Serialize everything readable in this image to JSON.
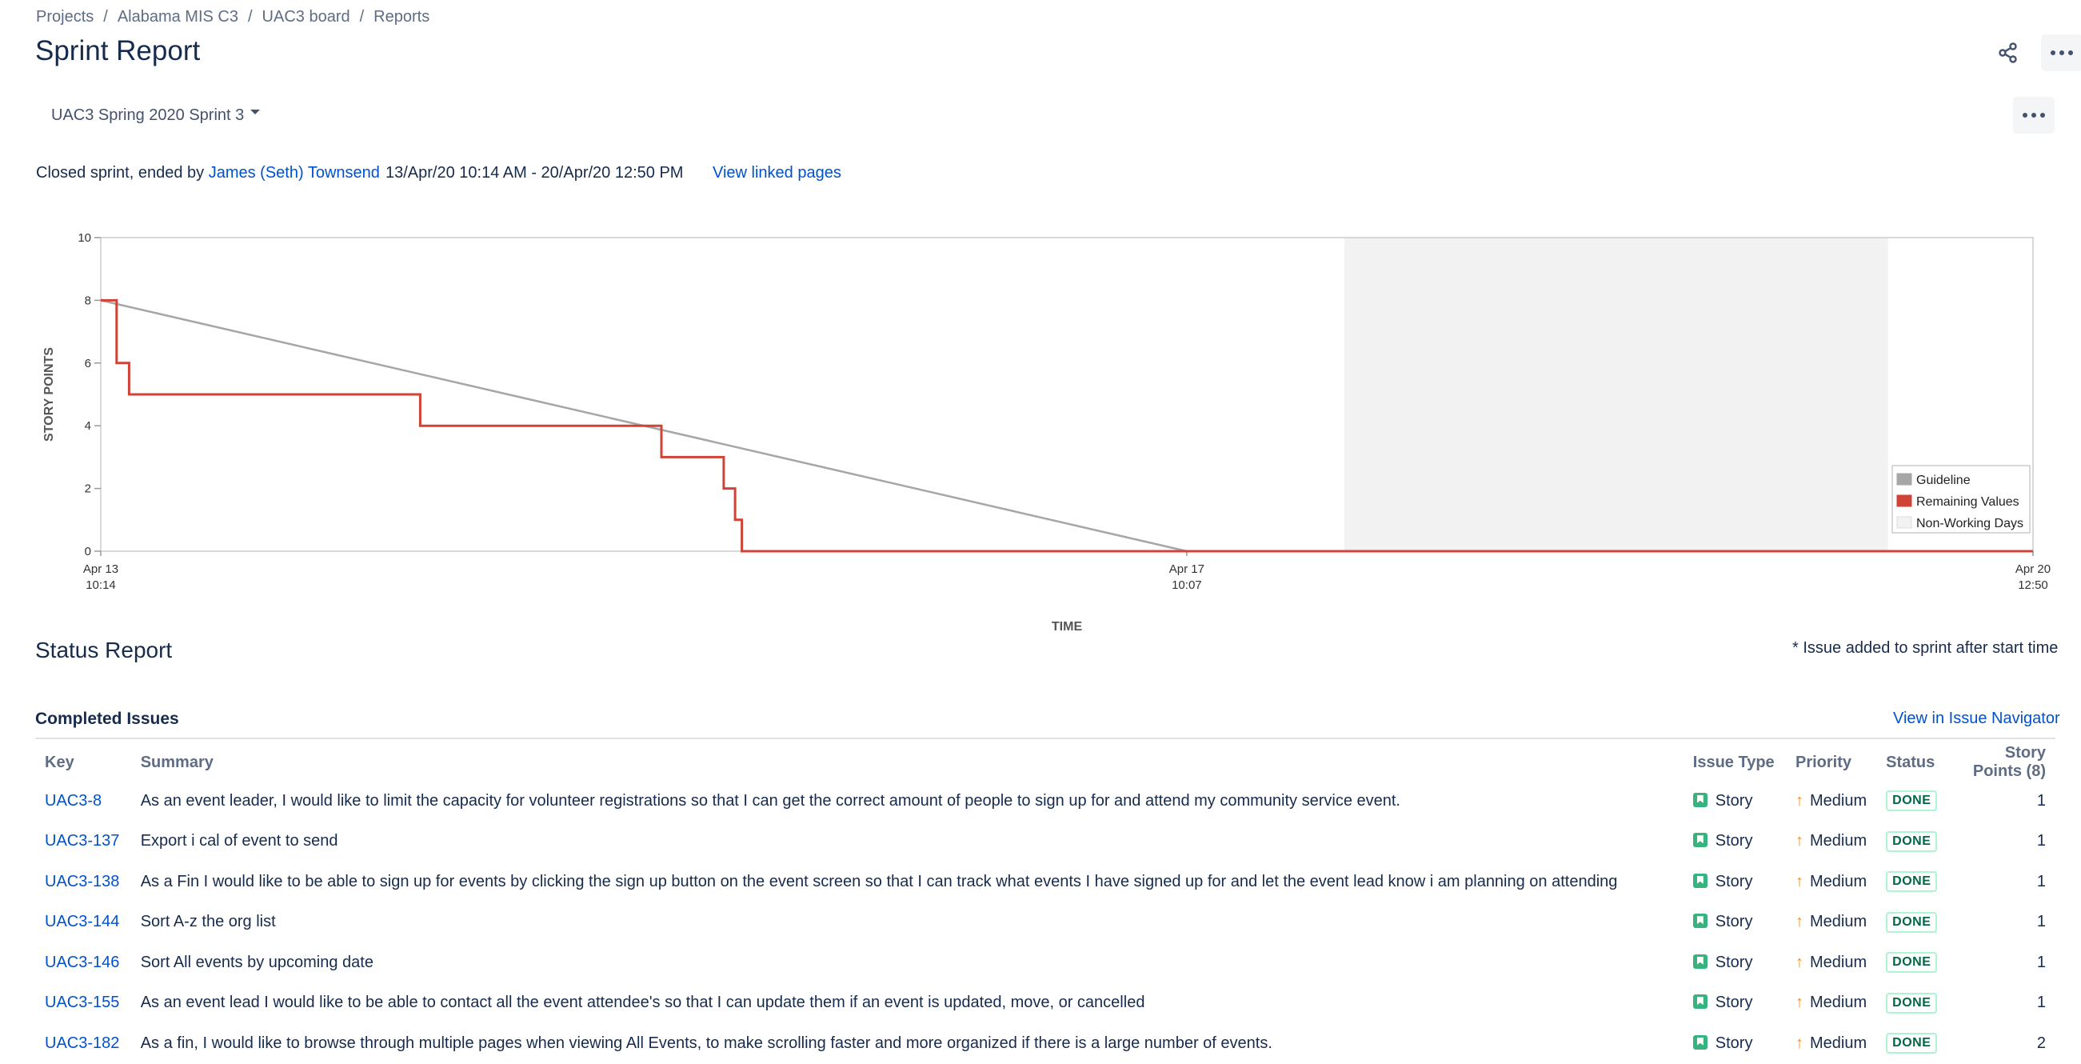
{
  "breadcrumbs": [
    "Projects",
    "Alabama MIS C3",
    "UAC3 board",
    "Reports"
  ],
  "page_title": "Sprint Report",
  "sprint_selector": {
    "value": "UAC3 Spring 2020 Sprint 3"
  },
  "sprint_info": {
    "status_prefix": "Closed sprint, ended by",
    "ended_by": "James (Seth) Townsend",
    "dates": "13/Apr/20 10:14 AM - 20/Apr/20 12:50 PM",
    "linked_pages_link": "View linked pages"
  },
  "chart_data": {
    "type": "line",
    "xlabel": "TIME",
    "ylabel": "STORY POINTS",
    "ylim": [
      0,
      10
    ],
    "y_ticks": [
      "0",
      "2",
      "4",
      "6",
      "8",
      "10"
    ],
    "x_ticks": [
      {
        "date": "Apr 13",
        "time": "10:14",
        "hours": 0
      },
      {
        "date": "Apr 17",
        "time": "10:07",
        "hours": 95.883
      },
      {
        "date": "Apr 20",
        "time": "12:50",
        "hours": 170.6
      }
    ],
    "legend": [
      "Guideline",
      "Remaining Values",
      "Non-Working Days"
    ],
    "legend_position": "top-right",
    "colors": {
      "guideline": "#a6a6a6",
      "remaining": "#d04437",
      "nonworking": "#f2f2f2"
    },
    "non_working_hours": [
      109.8,
      157.8
    ],
    "series": [
      {
        "name": "Guideline",
        "x": [
          0,
          95.883
        ],
        "y": [
          8,
          0
        ]
      },
      {
        "name": "Remaining Values",
        "x": [
          0,
          1.4,
          1.4,
          2.5,
          2.5,
          28.2,
          28.2,
          49.5,
          49.5,
          55.0,
          55.0,
          56.0,
          56.0,
          56.6,
          56.6,
          170.6
        ],
        "y": [
          8,
          8,
          6,
          6,
          5,
          5,
          4,
          4,
          3,
          3,
          2,
          2,
          1,
          1,
          0,
          0
        ]
      }
    ]
  },
  "status_report": {
    "title": "Status Report",
    "note": "* Issue added to sprint after start time"
  },
  "completed": {
    "title": "Completed Issues",
    "navigator_link": "View in Issue Navigator",
    "columns": [
      "Key",
      "Summary",
      "Issue Type",
      "Priority",
      "Status",
      "Story Points (8)"
    ],
    "rows": [
      {
        "key": "UAC3-8",
        "summary": "As an event leader, I would like to limit the capacity for volunteer registrations so that I can get the correct amount of people to sign up for and attend my community service event.",
        "type": "Story",
        "priority": "Medium",
        "status": "DONE",
        "points": "1"
      },
      {
        "key": "UAC3-137",
        "summary": "Export i cal of event to send",
        "type": "Story",
        "priority": "Medium",
        "status": "DONE",
        "points": "1"
      },
      {
        "key": "UAC3-138",
        "summary": "As a Fin I would like to be able to sign up for events by clicking the sign up button on the event screen so that I can track what events I have signed up for and let the event lead know i am planning on attending",
        "type": "Story",
        "priority": "Medium",
        "status": "DONE",
        "points": "1"
      },
      {
        "key": "UAC3-144",
        "summary": "Sort A-z the org list",
        "type": "Story",
        "priority": "Medium",
        "status": "DONE",
        "points": "1"
      },
      {
        "key": "UAC3-146",
        "summary": "Sort All events by upcoming date",
        "type": "Story",
        "priority": "Medium",
        "status": "DONE",
        "points": "1"
      },
      {
        "key": "UAC3-155",
        "summary": "As an event lead I would like to be able to contact all the event attendee's so that I can update them if an event is updated, move, or cancelled",
        "type": "Story",
        "priority": "Medium",
        "status": "DONE",
        "points": "1"
      },
      {
        "key": "UAC3-182",
        "summary": "As a fin, I would like to browse through multiple pages when viewing All Events, to make scrolling faster and more organized if there is a large number of events.",
        "type": "Story",
        "priority": "Medium",
        "status": "DONE",
        "points": "2"
      }
    ]
  },
  "icons": {
    "share": "share-icon",
    "more": "more-icon",
    "story": "story-icon",
    "priority_medium": "priority-medium-icon"
  },
  "colors": {
    "link": "#0052cc",
    "story": "#36b37e",
    "priority_medium": "#ff8b00",
    "done_border": "#abf5d1",
    "done_text": "#006644"
  }
}
